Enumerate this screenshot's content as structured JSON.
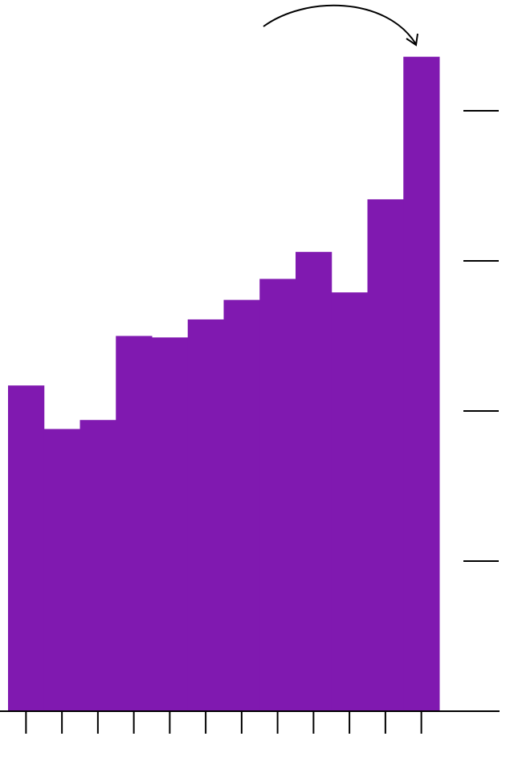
{
  "chart_data": {
    "type": "bar",
    "categories": [
      null,
      null,
      null,
      null,
      null,
      null,
      null,
      null,
      null,
      null,
      null,
      null
    ],
    "values": [
      2.17,
      1.88,
      1.94,
      2.5,
      2.49,
      2.61,
      2.74,
      2.88,
      3.06,
      2.79,
      3.41,
      4.36
    ],
    "color": "#8019b0",
    "ylim": [
      0,
      4.7
    ],
    "yticks": [
      1,
      2,
      3,
      4
    ],
    "y_axis_side": "right",
    "grid": false
  }
}
